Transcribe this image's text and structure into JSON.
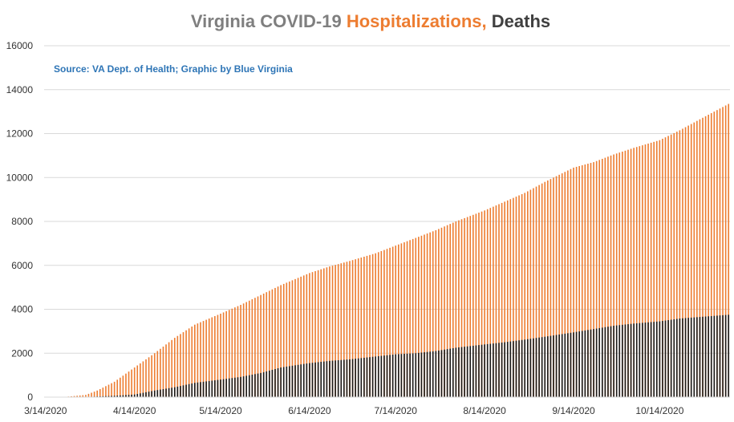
{
  "chart_data": {
    "type": "bar",
    "title_parts": [
      {
        "text": "Virginia COVID-19 ",
        "color": "#7f7f7f"
      },
      {
        "text": "Hospitalizations,",
        "color": "#ed7d31"
      },
      {
        "text": " Deaths",
        "color": "#404040"
      }
    ],
    "annotation": "Source: VA Dept. of Health; Graphic by Blue Virginia",
    "annotation_color": "#2e75b6",
    "x_start": "2020-03-14",
    "x_end": "2020-11-07",
    "x_tick_labels": [
      "3/14/2020",
      "4/14/2020",
      "5/14/2020",
      "6/14/2020",
      "7/14/2020",
      "8/14/2020",
      "9/14/2020",
      "10/14/2020"
    ],
    "x_tick_dates": [
      "2020-03-14",
      "2020-04-14",
      "2020-05-14",
      "2020-06-14",
      "2020-07-14",
      "2020-08-14",
      "2020-09-14",
      "2020-10-14"
    ],
    "ylim": [
      0,
      16000
    ],
    "y_ticks": [
      0,
      2000,
      4000,
      6000,
      8000,
      10000,
      12000,
      14000,
      16000
    ],
    "grid": true,
    "series": [
      {
        "color": "#ed7d31",
        "points": [
          [
            "2020-03-14",
            0
          ],
          [
            "2020-03-21",
            15
          ],
          [
            "2020-03-28",
            100
          ],
          [
            "2020-04-01",
            300
          ],
          [
            "2020-04-07",
            700
          ],
          [
            "2020-04-14",
            1350
          ],
          [
            "2020-04-21",
            2000
          ],
          [
            "2020-04-28",
            2700
          ],
          [
            "2020-05-05",
            3300
          ],
          [
            "2020-05-14",
            3800
          ],
          [
            "2020-05-21",
            4200
          ],
          [
            "2020-05-28",
            4650
          ],
          [
            "2020-06-04",
            5100
          ],
          [
            "2020-06-14",
            5650
          ],
          [
            "2020-06-21",
            5950
          ],
          [
            "2020-06-28",
            6200
          ],
          [
            "2020-07-07",
            6550
          ],
          [
            "2020-07-14",
            6900
          ],
          [
            "2020-07-21",
            7250
          ],
          [
            "2020-07-28",
            7600
          ],
          [
            "2020-08-04",
            8000
          ],
          [
            "2020-08-14",
            8500
          ],
          [
            "2020-08-21",
            8900
          ],
          [
            "2020-08-28",
            9300
          ],
          [
            "2020-09-04",
            9800
          ],
          [
            "2020-09-14",
            10450
          ],
          [
            "2020-09-21",
            10700
          ],
          [
            "2020-09-28",
            11050
          ],
          [
            "2020-10-05",
            11350
          ],
          [
            "2020-10-14",
            11700
          ],
          [
            "2020-10-21",
            12150
          ],
          [
            "2020-10-28",
            12650
          ],
          [
            "2020-11-07",
            13350
          ]
        ]
      },
      {
        "color": "#1a1a1a",
        "points": [
          [
            "2020-03-14",
            0
          ],
          [
            "2020-03-21",
            2
          ],
          [
            "2020-03-28",
            10
          ],
          [
            "2020-04-01",
            30
          ],
          [
            "2020-04-07",
            60
          ],
          [
            "2020-04-14",
            120
          ],
          [
            "2020-04-21",
            300
          ],
          [
            "2020-04-28",
            450
          ],
          [
            "2020-05-05",
            650
          ],
          [
            "2020-05-14",
            800
          ],
          [
            "2020-05-21",
            920
          ],
          [
            "2020-05-28",
            1100
          ],
          [
            "2020-06-04",
            1350
          ],
          [
            "2020-06-14",
            1550
          ],
          [
            "2020-06-21",
            1650
          ],
          [
            "2020-06-28",
            1720
          ],
          [
            "2020-07-07",
            1850
          ],
          [
            "2020-07-14",
            1950
          ],
          [
            "2020-07-21",
            2000
          ],
          [
            "2020-07-28",
            2100
          ],
          [
            "2020-08-04",
            2250
          ],
          [
            "2020-08-14",
            2400
          ],
          [
            "2020-08-21",
            2500
          ],
          [
            "2020-08-28",
            2620
          ],
          [
            "2020-09-04",
            2750
          ],
          [
            "2020-09-14",
            2950
          ],
          [
            "2020-09-21",
            3100
          ],
          [
            "2020-09-28",
            3250
          ],
          [
            "2020-10-05",
            3350
          ],
          [
            "2020-10-14",
            3450
          ],
          [
            "2020-10-21",
            3580
          ],
          [
            "2020-10-28",
            3650
          ],
          [
            "2020-11-07",
            3750
          ]
        ]
      }
    ]
  }
}
